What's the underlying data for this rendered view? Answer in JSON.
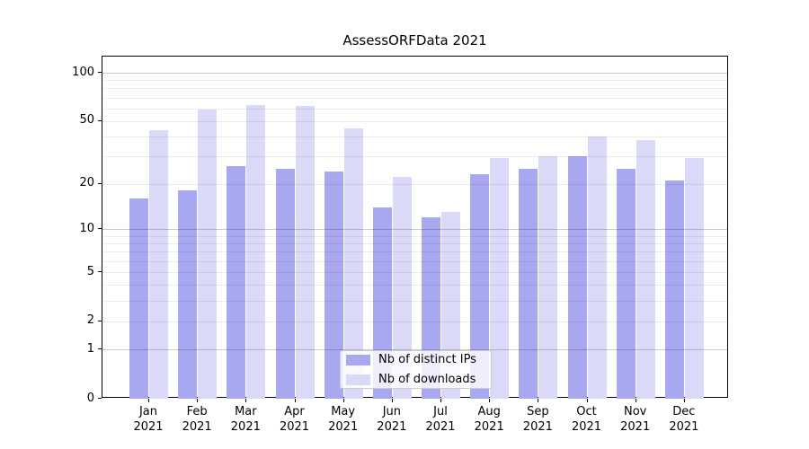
{
  "chart_data": {
    "type": "bar",
    "title": "AssessORFData 2021",
    "categories": [
      "Jan",
      "Feb",
      "Mar",
      "Apr",
      "May",
      "Jun",
      "Jul",
      "Aug",
      "Sep",
      "Oct",
      "Nov",
      "Dec"
    ],
    "category_year": "2021",
    "series": [
      {
        "name": "Nb of distinct IPs",
        "color": "#a8a8f0",
        "values": [
          16,
          18,
          26,
          25,
          24,
          14,
          12,
          23,
          25,
          30,
          25,
          21
        ]
      },
      {
        "name": "Nb of downloads",
        "color": "#dadaf8",
        "values": [
          44,
          59,
          63,
          62,
          45,
          22,
          13,
          29,
          30,
          40,
          38,
          29
        ]
      }
    ],
    "yscale": "log1p",
    "ylim": [
      0,
      126
    ],
    "yticks": [
      0,
      1,
      2,
      5,
      10,
      20,
      50,
      100
    ],
    "major_gridlines": [
      1,
      10,
      100
    ],
    "minor_gridlines": [
      2,
      3,
      4,
      5,
      6,
      7,
      8,
      9,
      20,
      30,
      40,
      50,
      60,
      70,
      80,
      90
    ],
    "grid": true,
    "legend_position": "lower center"
  }
}
